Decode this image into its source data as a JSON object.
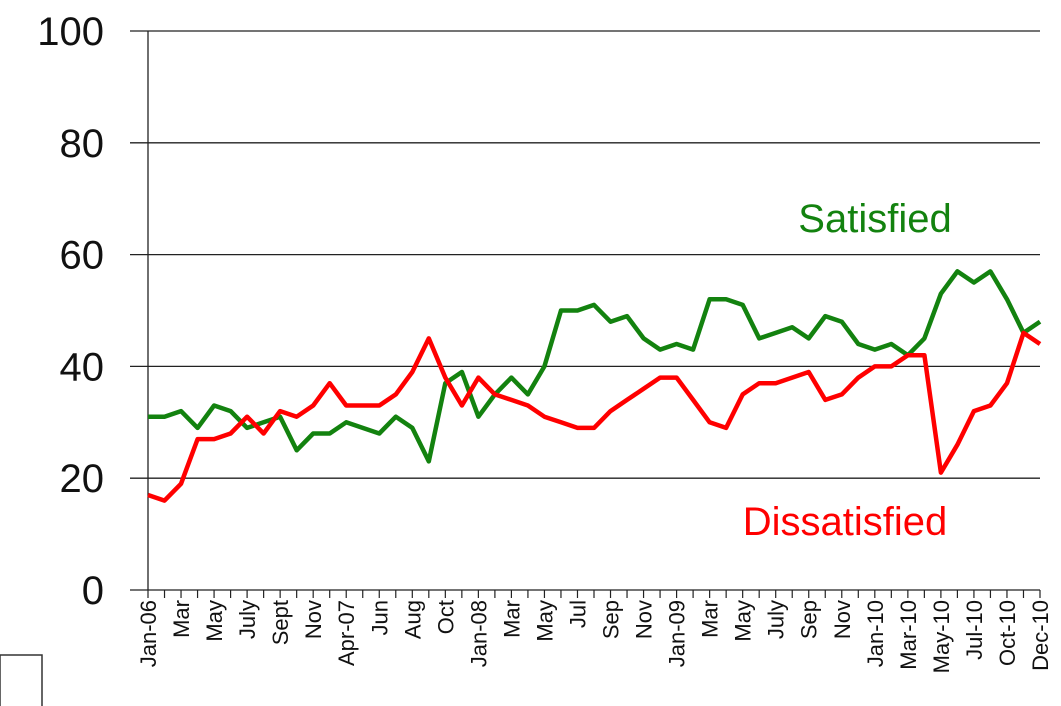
{
  "chart_data": {
    "type": "line",
    "categories": [
      "Jan-06",
      null,
      "Mar",
      null,
      "May",
      null,
      "July",
      null,
      "Sept",
      null,
      "Nov",
      null,
      "Apr-07",
      null,
      "Jun",
      null,
      "Aug",
      null,
      "Oct",
      null,
      "Jan-08",
      null,
      "Mar",
      null,
      "May",
      null,
      "Jul",
      null,
      "Sep",
      null,
      "Nov",
      null,
      "Jan-09",
      null,
      "Mar",
      null,
      "May",
      null,
      "July",
      null,
      "Sep",
      null,
      "Nov",
      null,
      "Jan-10",
      null,
      "Mar-10",
      null,
      "May-10",
      null,
      "Jul-10",
      null,
      "Oct-10",
      null,
      "Dec-10"
    ],
    "series": [
      {
        "name": "Satisfied",
        "color": "#13820f",
        "values": [
          31,
          31,
          32,
          29,
          33,
          32,
          29,
          30,
          31,
          25,
          28,
          28,
          30,
          29,
          28,
          31,
          29,
          23,
          37,
          39,
          31,
          35,
          38,
          35,
          40,
          50,
          50,
          51,
          48,
          49,
          45,
          43,
          44,
          43,
          52,
          52,
          51,
          45,
          46,
          47,
          45,
          49,
          48,
          44,
          43,
          44,
          42,
          45,
          53,
          57,
          55,
          57,
          52,
          46,
          48
        ]
      },
      {
        "name": "Dissatisfied",
        "color": "#ff0000",
        "values": [
          17,
          16,
          19,
          27,
          27,
          28,
          31,
          28,
          32,
          31,
          33,
          37,
          33,
          33,
          33,
          35,
          39,
          45,
          38,
          33,
          38,
          35,
          34,
          33,
          31,
          30,
          29,
          29,
          32,
          34,
          36,
          38,
          38,
          34,
          30,
          29,
          35,
          37,
          37,
          38,
          39,
          34,
          35,
          38,
          40,
          40,
          42,
          42,
          21,
          26,
          32,
          33,
          37,
          46,
          44
        ]
      }
    ],
    "ylim": [
      0,
      100
    ],
    "yticks": [
      0,
      20,
      40,
      60,
      80,
      100
    ],
    "grid": true
  }
}
